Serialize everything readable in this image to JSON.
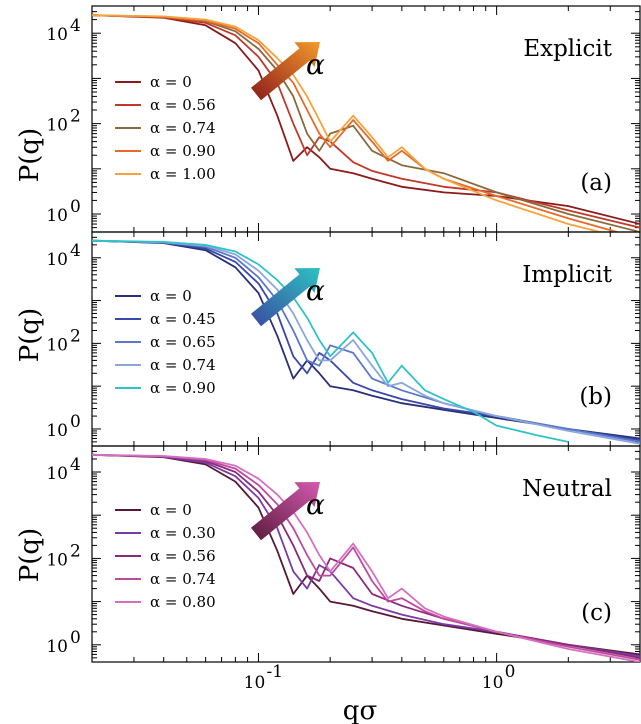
{
  "figure": {
    "ylabel": "P(q)",
    "xlabel": "qσ",
    "x_tick_labels": [
      {
        "base": "10",
        "exp": "-1",
        "value": 0.1
      },
      {
        "base": "10",
        "exp": "0",
        "value": 1.0
      }
    ],
    "y_tick_labels": [
      {
        "base": "10",
        "exp": "0",
        "value": 1
      },
      {
        "base": "10",
        "exp": "2",
        "value": 100
      },
      {
        "base": "10",
        "exp": "4",
        "value": 10000
      }
    ],
    "arrow_symbol": "α"
  },
  "chart_data": [
    {
      "type": "line",
      "panel_label": "Explicit",
      "panel_tag": "(a)",
      "xscale": "log",
      "yscale": "log",
      "xlim": [
        0.02,
        4.0
      ],
      "ylim": [
        0.4,
        40000
      ],
      "legend_placement": "left",
      "arrow_colors": [
        "#8b1a1a",
        "#f39a2a"
      ],
      "series": [
        {
          "name": "α = 0",
          "color": "#8b1a1a",
          "x": [
            0.02,
            0.04,
            0.06,
            0.08,
            0.1,
            0.12,
            0.14,
            0.16,
            0.18,
            0.2,
            0.25,
            0.3,
            0.4,
            0.6,
            1.0,
            2.0,
            4.0
          ],
          "y": [
            25000,
            22000,
            15000,
            6000,
            1500,
            150,
            15,
            30,
            18,
            10,
            8,
            6,
            4,
            3,
            2.5,
            1.5,
            0.6
          ]
        },
        {
          "name": "α = 0.56",
          "color": "#c0392b",
          "x": [
            0.02,
            0.04,
            0.06,
            0.08,
            0.1,
            0.12,
            0.14,
            0.16,
            0.18,
            0.2,
            0.25,
            0.3,
            0.4,
            0.6,
            1.0,
            2.0,
            4.0
          ],
          "y": [
            25000,
            22500,
            17000,
            9000,
            3000,
            800,
            100,
            20,
            50,
            40,
            14,
            9,
            6,
            4,
            3,
            1.2,
            0.5
          ]
        },
        {
          "name": "α = 0.74",
          "color": "#8a6a3a",
          "x": [
            0.02,
            0.04,
            0.06,
            0.08,
            0.1,
            0.12,
            0.14,
            0.16,
            0.18,
            0.2,
            0.25,
            0.3,
            0.4,
            0.6,
            1.0,
            2.0,
            4.0
          ],
          "y": [
            25000,
            23000,
            18500,
            11000,
            4500,
            1500,
            400,
            60,
            25,
            60,
            90,
            25,
            12,
            8,
            3,
            1.0,
            0.4
          ]
        },
        {
          "name": "α = 0.90",
          "color": "#e8692b",
          "x": [
            0.02,
            0.04,
            0.06,
            0.08,
            0.1,
            0.12,
            0.14,
            0.16,
            0.18,
            0.2,
            0.25,
            0.3,
            0.35,
            0.4,
            0.5,
            0.6,
            1.0,
            2.0,
            3.5
          ],
          "y": [
            25000,
            23000,
            19000,
            12500,
            6000,
            2000,
            800,
            200,
            60,
            30,
            120,
            40,
            15,
            25,
            10,
            6,
            2.5,
            0.8,
            0.35
          ]
        },
        {
          "name": "α = 1.00",
          "color": "#f5a33a",
          "x": [
            0.02,
            0.04,
            0.06,
            0.08,
            0.1,
            0.12,
            0.14,
            0.16,
            0.18,
            0.2,
            0.25,
            0.3,
            0.35,
            0.4,
            0.5,
            0.6,
            1.0,
            2.0,
            3.0
          ],
          "y": [
            25000,
            23500,
            20000,
            14000,
            7000,
            2800,
            1200,
            400,
            120,
            40,
            150,
            50,
            18,
            30,
            10,
            6,
            2,
            0.6,
            0.35
          ]
        }
      ]
    },
    {
      "type": "line",
      "panel_label": "Implicit",
      "panel_tag": "(b)",
      "xscale": "log",
      "yscale": "log",
      "xlim": [
        0.02,
        4.0
      ],
      "ylim": [
        0.4,
        40000
      ],
      "legend_placement": "left",
      "arrow_colors": [
        "#3b4aa0",
        "#2dc2c2"
      ],
      "series": [
        {
          "name": "α = 0",
          "color": "#2a2f7a",
          "x": [
            0.02,
            0.04,
            0.06,
            0.08,
            0.1,
            0.12,
            0.14,
            0.16,
            0.18,
            0.2,
            0.25,
            0.3,
            0.4,
            0.6,
            1.0,
            2.0,
            4.0
          ],
          "y": [
            25000,
            22000,
            15000,
            6000,
            1500,
            150,
            15,
            40,
            20,
            10,
            8,
            6,
            4,
            2.8,
            1.8,
            1.0,
            0.6
          ]
        },
        {
          "name": "α = 0.45",
          "color": "#3a48a8",
          "x": [
            0.02,
            0.04,
            0.06,
            0.08,
            0.1,
            0.12,
            0.14,
            0.16,
            0.18,
            0.2,
            0.25,
            0.3,
            0.4,
            0.6,
            1.0,
            2.0,
            4.0
          ],
          "y": [
            25000,
            22500,
            16500,
            8000,
            2500,
            500,
            50,
            20,
            60,
            40,
            12,
            8,
            5,
            3,
            2,
            1.0,
            0.55
          ]
        },
        {
          "name": "α = 0.65",
          "color": "#5a78c8",
          "x": [
            0.02,
            0.04,
            0.06,
            0.08,
            0.1,
            0.12,
            0.14,
            0.16,
            0.18,
            0.2,
            0.25,
            0.3,
            0.4,
            0.6,
            1.0,
            2.0,
            4.0
          ],
          "y": [
            25000,
            23000,
            18000,
            10000,
            3500,
            1000,
            200,
            40,
            30,
            90,
            60,
            15,
            8,
            4,
            2,
            1.0,
            0.5
          ]
        },
        {
          "name": "α = 0.74",
          "color": "#8aa6dc",
          "x": [
            0.02,
            0.04,
            0.06,
            0.08,
            0.1,
            0.12,
            0.14,
            0.16,
            0.18,
            0.2,
            0.25,
            0.3,
            0.35,
            0.4,
            0.5,
            0.6,
            1.0,
            2.0,
            4.0
          ],
          "y": [
            25000,
            23000,
            19000,
            12000,
            5000,
            1800,
            500,
            120,
            40,
            40,
            120,
            30,
            10,
            12,
            6,
            4,
            2,
            0.9,
            0.45
          ]
        },
        {
          "name": "α = 0.90",
          "color": "#2fc3c7",
          "x": [
            0.02,
            0.04,
            0.06,
            0.08,
            0.1,
            0.12,
            0.14,
            0.16,
            0.18,
            0.2,
            0.25,
            0.3,
            0.35,
            0.4,
            0.5,
            0.6,
            0.8,
            1.0,
            1.5,
            2.0
          ],
          "y": [
            25000,
            23500,
            20000,
            14000,
            7000,
            3000,
            1200,
            400,
            120,
            50,
            180,
            60,
            12,
            30,
            8,
            5,
            2.5,
            1.2,
            0.7,
            0.5
          ]
        }
      ]
    },
    {
      "type": "line",
      "panel_label": "Neutral",
      "panel_tag": "(c)",
      "xscale": "log",
      "yscale": "log",
      "xlim": [
        0.02,
        4.0
      ],
      "ylim": [
        0.4,
        40000
      ],
      "legend_placement": "left",
      "arrow_colors": [
        "#5a1a3a",
        "#d45ab0"
      ],
      "series": [
        {
          "name": "α = 0",
          "color": "#5a1838",
          "x": [
            0.02,
            0.04,
            0.06,
            0.08,
            0.1,
            0.12,
            0.14,
            0.16,
            0.18,
            0.2,
            0.25,
            0.3,
            0.4,
            0.6,
            1.0,
            2.0,
            4.0
          ],
          "y": [
            25000,
            22000,
            15000,
            6000,
            1500,
            150,
            15,
            40,
            20,
            10,
            8,
            6,
            4,
            2.8,
            1.8,
            1.0,
            0.6
          ]
        },
        {
          "name": "α = 0.30",
          "color": "#7a3aa8",
          "x": [
            0.02,
            0.04,
            0.06,
            0.08,
            0.1,
            0.12,
            0.14,
            0.16,
            0.18,
            0.2,
            0.25,
            0.3,
            0.4,
            0.6,
            1.0,
            2.0,
            4.0
          ],
          "y": [
            25000,
            22500,
            16500,
            8000,
            2500,
            500,
            50,
            20,
            70,
            50,
            12,
            8,
            5,
            3,
            2,
            1.0,
            0.55
          ]
        },
        {
          "name": "α = 0.56",
          "color": "#8a2a78",
          "x": [
            0.02,
            0.04,
            0.06,
            0.08,
            0.1,
            0.12,
            0.14,
            0.16,
            0.18,
            0.2,
            0.25,
            0.3,
            0.4,
            0.6,
            1.0,
            2.0,
            4.0
          ],
          "y": [
            25000,
            23000,
            18000,
            10000,
            3500,
            1000,
            200,
            40,
            30,
            100,
            60,
            15,
            8,
            4,
            2,
            1.0,
            0.5
          ]
        },
        {
          "name": "α = 0.74",
          "color": "#c04aa0",
          "x": [
            0.02,
            0.04,
            0.06,
            0.08,
            0.1,
            0.12,
            0.14,
            0.16,
            0.18,
            0.2,
            0.25,
            0.3,
            0.35,
            0.4,
            0.5,
            0.6,
            1.0,
            2.0,
            4.0
          ],
          "y": [
            25000,
            23000,
            19000,
            12000,
            5000,
            1800,
            500,
            120,
            40,
            40,
            180,
            30,
            10,
            12,
            6,
            4,
            2,
            0.9,
            0.45
          ]
        },
        {
          "name": "α = 0.80",
          "color": "#d470c0",
          "x": [
            0.02,
            0.04,
            0.06,
            0.08,
            0.1,
            0.12,
            0.14,
            0.16,
            0.18,
            0.2,
            0.25,
            0.3,
            0.35,
            0.4,
            0.5,
            0.6,
            1.0,
            2.0,
            4.0
          ],
          "y": [
            25000,
            23500,
            20000,
            14000,
            7000,
            3000,
            1200,
            400,
            120,
            50,
            220,
            50,
            12,
            20,
            7,
            4.5,
            2,
            0.8,
            0.4
          ]
        }
      ]
    }
  ]
}
